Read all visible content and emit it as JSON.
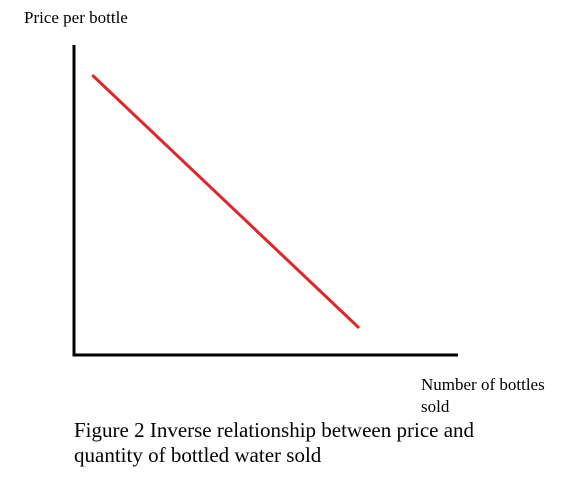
{
  "chart_data": {
    "type": "line",
    "title": "",
    "xlabel": "Number of bottles sold",
    "ylabel": "Price per bottle",
    "caption": "Figure 2 Inverse relationship between price and quantity of bottled water sold",
    "xlim": [
      0,
      10
    ],
    "ylim": [
      0,
      10
    ],
    "grid": false,
    "series": [
      {
        "x": [
          0.5,
          7.4
        ],
        "y": [
          9.0,
          0.9
        ],
        "color": "#e0262b"
      }
    ],
    "axis_color": "#000000"
  }
}
